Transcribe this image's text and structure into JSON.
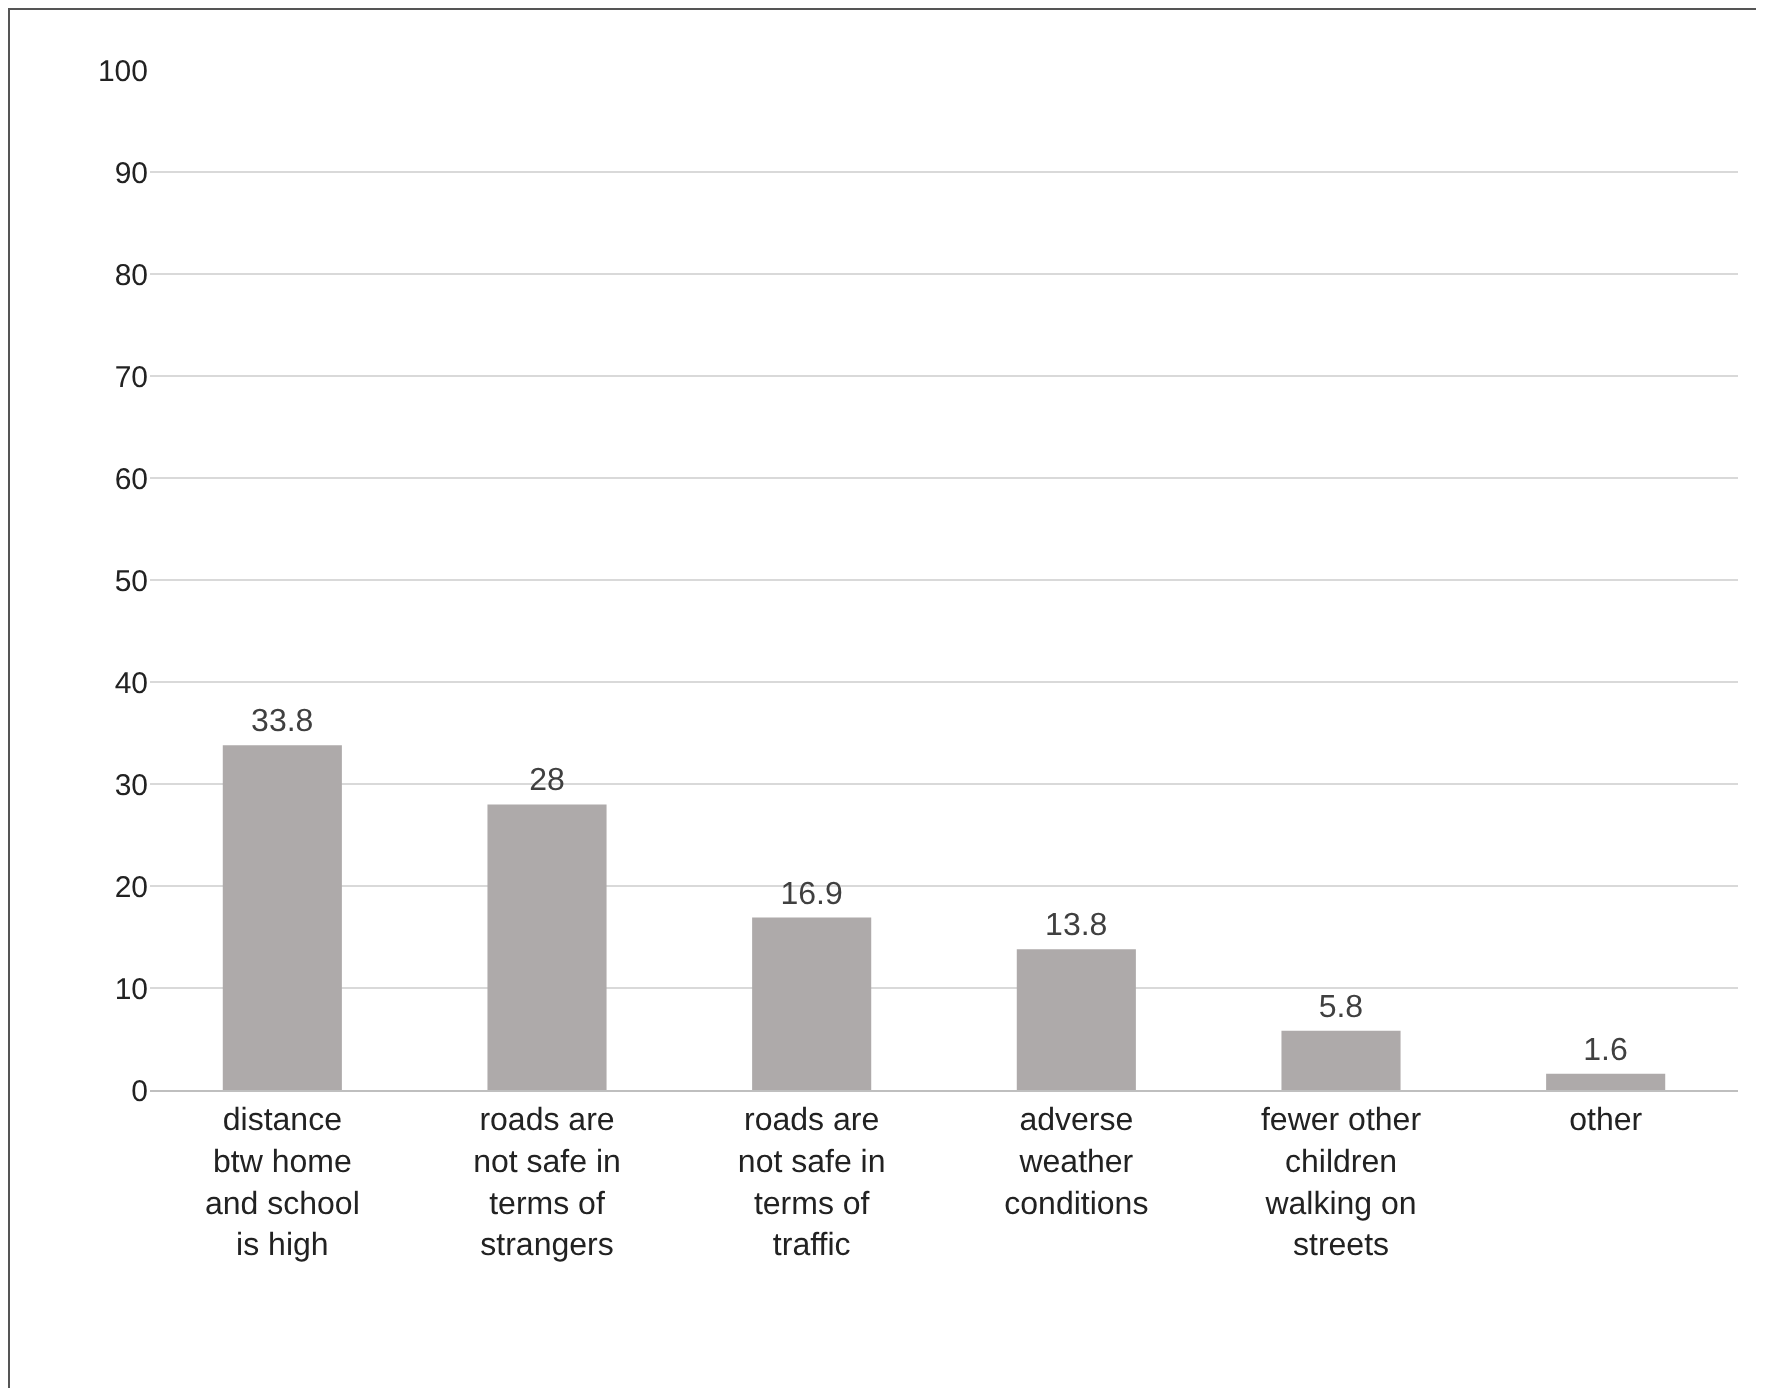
{
  "chart_data": {
    "type": "bar",
    "categories": [
      "distance btw home and school is high",
      "roads are not safe in terms of strangers",
      "roads are not safe in terms of traffic",
      "adverse weather conditions",
      "fewer other children walking on streets",
      "other"
    ],
    "values": [
      33.8,
      28,
      16.9,
      13.8,
      5.8,
      1.6
    ],
    "color": "#aeaaaa",
    "ylim": [
      0,
      100
    ],
    "yticks": [
      0,
      10,
      20,
      30,
      40,
      50,
      60,
      70,
      80,
      90,
      100
    ],
    "grid": "y",
    "data_labels": true,
    "legend": false
  }
}
